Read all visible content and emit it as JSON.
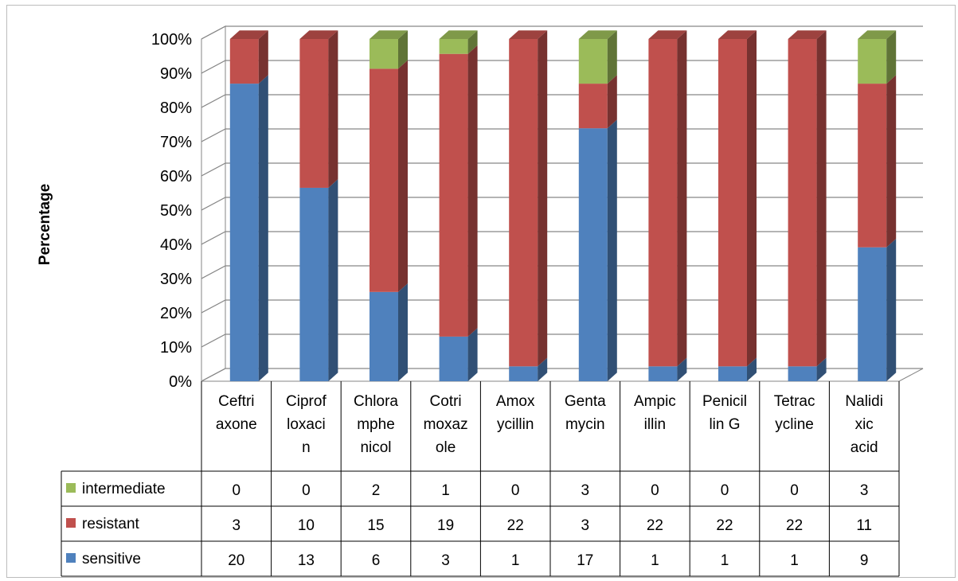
{
  "chart_data": {
    "type": "bar",
    "stacked": "percent",
    "ylabel": "Percentage",
    "y_ticks": [
      "0%",
      "10%",
      "20%",
      "30%",
      "40%",
      "50%",
      "60%",
      "70%",
      "80%",
      "90%",
      "100%"
    ],
    "ylim": [
      0,
      100
    ],
    "grid": true,
    "categories": [
      [
        "Ceftri",
        "axone"
      ],
      [
        "Ciprof",
        "loxaci",
        "n"
      ],
      [
        "Chlora",
        "mphe",
        "nicol"
      ],
      [
        "Cotri",
        "moxaz",
        "ole"
      ],
      [
        "Amox",
        "ycillin"
      ],
      [
        "Genta",
        "mycin"
      ],
      [
        "Ampic",
        "illin"
      ],
      [
        "Penicil",
        "lin G"
      ],
      [
        "Tetrac",
        "ycline"
      ],
      [
        "Nalidi",
        "xic",
        "acid"
      ]
    ],
    "series": [
      {
        "name": "intermediate",
        "color": "#9bbb59",
        "values": [
          0,
          0,
          2,
          1,
          0,
          3,
          0,
          0,
          0,
          3
        ]
      },
      {
        "name": "resistant",
        "color": "#c0504d",
        "values": [
          3,
          10,
          15,
          19,
          22,
          3,
          22,
          22,
          22,
          11
        ]
      },
      {
        "name": "sensitive",
        "color": "#4f81bd",
        "values": [
          20,
          13,
          6,
          3,
          1,
          17,
          1,
          1,
          1,
          9
        ]
      }
    ],
    "data_table": true
  }
}
